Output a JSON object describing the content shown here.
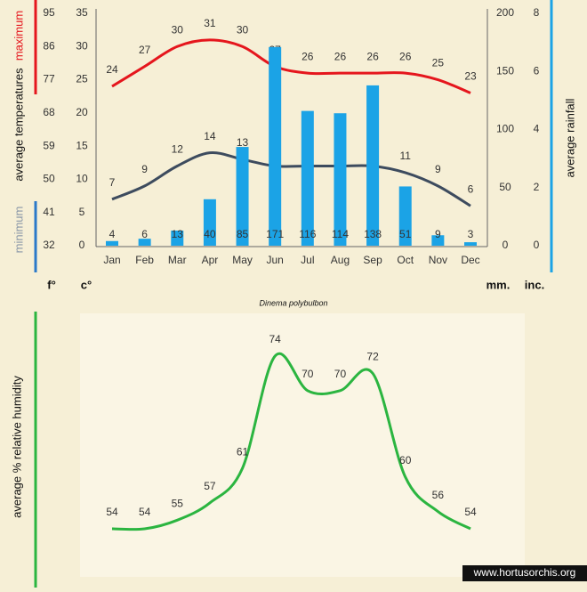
{
  "chart_data": [
    {
      "type": "combo",
      "categories": [
        "Jan",
        "Feb",
        "Mar",
        "Apr",
        "May",
        "Jun",
        "Jul",
        "Aug",
        "Sep",
        "Oct",
        "Nov",
        "Dec"
      ],
      "y_label": "average temperatures",
      "y2_label": "average rainfall",
      "caption": "Dinema polybulbon",
      "unit_labels": [
        "f°",
        "c°",
        "mm.",
        "inc."
      ],
      "ylim": [
        0,
        35
      ],
      "yticks": [
        0,
        5,
        10,
        15,
        20,
        25,
        30,
        35
      ],
      "ylim_f": [
        32,
        95
      ],
      "yticks_f": [
        32,
        41,
        50,
        59,
        68,
        77,
        86,
        95
      ],
      "y2lim": [
        0,
        200
      ],
      "y2ticks": [
        0,
        50,
        100,
        150,
        200
      ],
      "y2lim_in": [
        0,
        8
      ],
      "y2ticks_in": [
        0,
        2,
        4,
        6,
        8
      ],
      "series": [
        {
          "name": "maximum",
          "type": "line",
          "color": "#e5161d",
          "values": [
            24,
            27,
            30,
            31,
            30,
            27,
            26,
            26,
            26,
            26,
            25,
            23
          ]
        },
        {
          "name": "minimum",
          "type": "line",
          "color": "#3d4b5e",
          "values": [
            7,
            9,
            12,
            14,
            13,
            12,
            12,
            12,
            12,
            11,
            9,
            6
          ]
        },
        {
          "type": "bar",
          "axis": "y2",
          "color": "#1ba3e6",
          "values": [
            4,
            6,
            13,
            40,
            85,
            171,
            116,
            114,
            138,
            51,
            9,
            3
          ]
        }
      ]
    },
    {
      "type": "line",
      "y_label": "average % relative humidity",
      "color": "#2bb540",
      "values": [
        54,
        54,
        55,
        57,
        61,
        74,
        70,
        70,
        72,
        60,
        56,
        54
      ]
    }
  ],
  "footer": "www.hortusorchis.org"
}
